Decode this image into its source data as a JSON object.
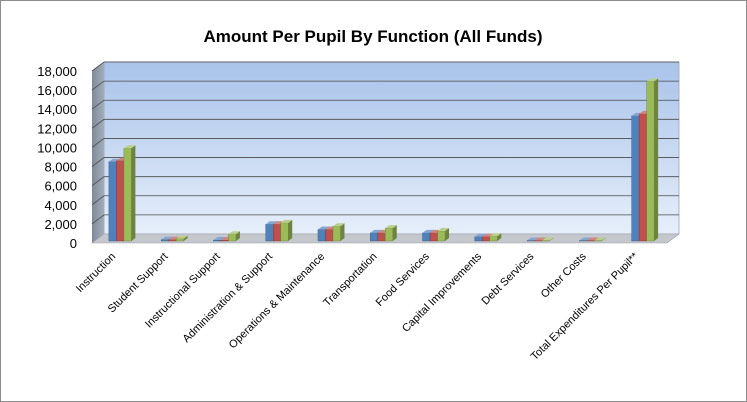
{
  "chart_data": {
    "type": "bar",
    "title": "Amount Per Pupil By Function (All Funds)",
    "xlabel": "",
    "ylabel": "",
    "ylim": [
      0,
      18000
    ],
    "yticks": [
      "0",
      "2,000",
      "4,000",
      "6,000",
      "8,000",
      "10,000",
      "12,000",
      "14,000",
      "16,000",
      "18,000"
    ],
    "grid": true,
    "legend": "none",
    "three_d": true,
    "categories": [
      "Instruction",
      "Student Support",
      "Instructional Support",
      "Administration & Support",
      "Operations & Maintenance",
      "Transportation",
      "Food Services",
      "Capital Improvements",
      "Debt Services",
      "Other Costs",
      "Total Expenditures Per Pupil**"
    ],
    "series": [
      {
        "color": "#4f81bd",
        "values": [
          8300,
          150,
          100,
          1750,
          1200,
          850,
          850,
          450,
          50,
          50,
          13100
        ]
      },
      {
        "color": "#c0504d",
        "values": [
          8400,
          150,
          100,
          1750,
          1200,
          850,
          850,
          450,
          50,
          50,
          13300
        ]
      },
      {
        "color": "#9bbb59",
        "values": [
          9700,
          250,
          700,
          1900,
          1550,
          1350,
          1050,
          500,
          50,
          50,
          16700
        ]
      }
    ]
  }
}
